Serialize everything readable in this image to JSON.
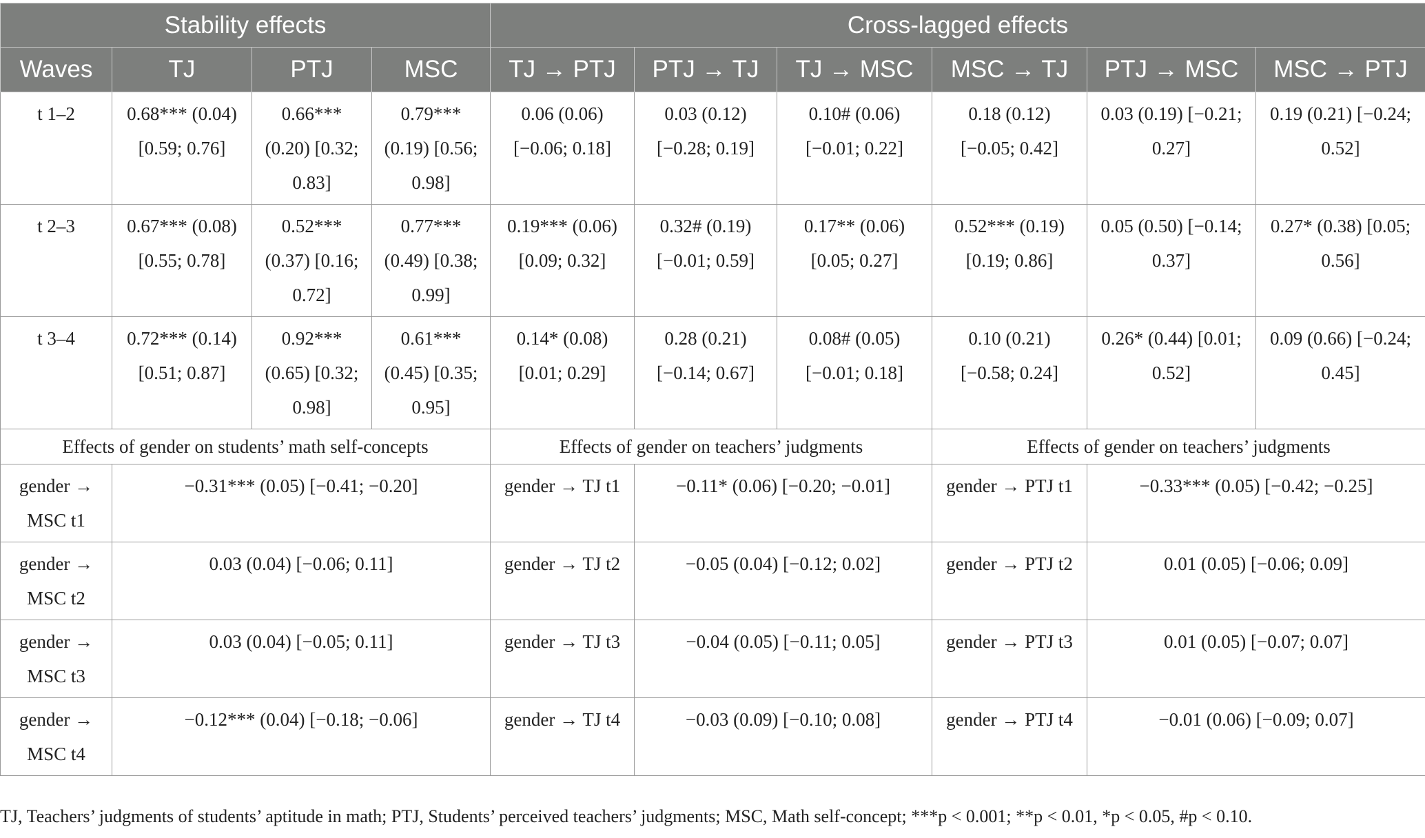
{
  "header": {
    "stability_title": "Stability effects",
    "crosslagged_title": "Cross-lagged effects",
    "columns": [
      "Waves",
      "TJ",
      "PTJ",
      "MSC",
      "TJ → PTJ",
      "PTJ → TJ",
      "TJ → MSC",
      "MSC → TJ",
      "PTJ → MSC",
      "MSC → PTJ"
    ]
  },
  "waves": [
    {
      "label": "t 1–2",
      "tj": "0.68*** (0.04) [0.59; 0.76]",
      "ptj": "0.66*** (0.20) [0.32; 0.83]",
      "msc": "0.79*** (0.19) [0.56; 0.98]",
      "tj_ptj": "0.06 (0.06) [−0.06; 0.18]",
      "ptj_tj": "0.03 (0.12) [−0.28; 0.19]",
      "tj_msc": "0.10# (0.06) [−0.01; 0.22]",
      "msc_tj": "0.18 (0.12) [−0.05; 0.42]",
      "ptj_msc": "0.03 (0.19) [−0.21; 0.27]",
      "msc_ptj": "0.19 (0.21) [−0.24; 0.52]"
    },
    {
      "label": "t 2–3",
      "tj": "0.67*** (0.08) [0.55; 0.78]",
      "ptj": "0.52*** (0.37) [0.16; 0.72]",
      "msc": "0.77*** (0.49) [0.38; 0.99]",
      "tj_ptj": "0.19*** (0.06) [0.09; 0.32]",
      "ptj_tj": "0.32# (0.19) [−0.01; 0.59]",
      "tj_msc": "0.17** (0.06) [0.05; 0.27]",
      "msc_tj": "0.52*** (0.19) [0.19; 0.86]",
      "ptj_msc": "0.05 (0.50) [−0.14; 0.37]",
      "msc_ptj": "0.27* (0.38) [0.05; 0.56]"
    },
    {
      "label": "t 3–4",
      "tj": "0.72*** (0.14) [0.51; 0.87]",
      "ptj": "0.92*** (0.65) [0.32; 0.98]",
      "msc": "0.61*** (0.45) [0.35; 0.95]",
      "tj_ptj": "0.14* (0.08) [0.01; 0.29]",
      "ptj_tj": "0.28 (0.21) [−0.14; 0.67]",
      "tj_msc": "0.08# (0.05) [−0.01; 0.18]",
      "msc_tj": "0.10 (0.21) [−0.58; 0.24]",
      "ptj_msc": "0.26* (0.44) [0.01; 0.52]",
      "msc_ptj": "0.09 (0.66) [−0.24; 0.45]"
    }
  ],
  "gender_section": {
    "msc_title": "Effects of gender on students’ math self-concepts",
    "tj_title": "Effects of gender on teachers’ judgments",
    "ptj_title": "Effects of gender on teachers’ judgments"
  },
  "gender_rows": [
    {
      "msc_label": "gender → MSC t1",
      "msc_value": "−0.31*** (0.05) [−0.41; −0.20]",
      "tj_label": "gender → TJ t1",
      "tj_value": "−0.11* (0.06) [−0.20; −0.01]",
      "ptj_label": "gender → PTJ t1",
      "ptj_value": "−0.33*** (0.05) [−0.42; −0.25]"
    },
    {
      "msc_label": "gender → MSC t2",
      "msc_value": "0.03 (0.04) [−0.06; 0.11]",
      "tj_label": "gender → TJ t2",
      "tj_value": "−0.05 (0.04) [−0.12; 0.02]",
      "ptj_label": "gender → PTJ t2",
      "ptj_value": "0.01 (0.05) [−0.06; 0.09]"
    },
    {
      "msc_label": "gender → MSC t3",
      "msc_value": "0.03 (0.04) [−0.05; 0.11]",
      "tj_label": "gender → TJ t3",
      "tj_value": "−0.04 (0.05) [−0.11; 0.05]",
      "ptj_label": "gender → PTJ t3",
      "ptj_value": "0.01 (0.05) [−0.07; 0.07]"
    },
    {
      "msc_label": "gender → MSC t4",
      "msc_value": "−0.12*** (0.04) [−0.18; −0.06]",
      "tj_label": "gender → TJ t4",
      "tj_value": "−0.03 (0.09) [−0.10; 0.08]",
      "ptj_label": "gender → PTJ t4",
      "ptj_value": "−0.01 (0.06) [−0.09; 0.07]"
    }
  ],
  "footnote": "TJ, Teachers’ judgments of students’ aptitude in math; PTJ, Students’ perceived teachers’ judgments; MSC, Math self-concept; ***p < 0.001; **p < 0.01, *p < 0.05, #p < 0.10."
}
